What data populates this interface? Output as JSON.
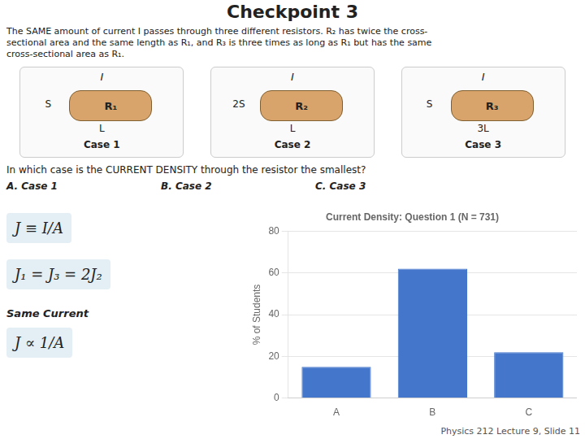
{
  "chart_data": {
    "type": "bar",
    "title": "Current Density: Question 1 (N = 731)",
    "ylabel": "% of Students",
    "categories": [
      "A",
      "B",
      "C"
    ],
    "values": [
      15,
      62,
      22
    ],
    "color": "#4477cc",
    "ylim": [
      0,
      80
    ],
    "yticks": [
      0,
      20,
      40,
      60,
      80
    ],
    "grid": true,
    "annotations": [
      "Checkpoint 3",
      "The SAME amount of current I passes through three different resistors. R₂ has twice the cross-",
      "sectional area and the same length as R₁, and R₃ is three times as long as R₁ but has the same",
      "cross-sectional area as R₁.",
      "I",
      "R₁",
      "S",
      "L",
      "Case 1",
      "I",
      "R₂",
      "2S",
      "L",
      "Case 2",
      "I",
      "R₃",
      "S",
      "3L",
      "Case 3",
      "In which case is the CURRENT DENSITY through the resistor the smallest?",
      "A. Case 1",
      "B. Case 2",
      "C.  Case 3",
      "J ≡ I/A",
      "J₁ = J₃ = 2J₂",
      "Same Current",
      "J ∝ 1/A",
      "Physics 212  Lecture 9, Slide  11"
    ]
  }
}
